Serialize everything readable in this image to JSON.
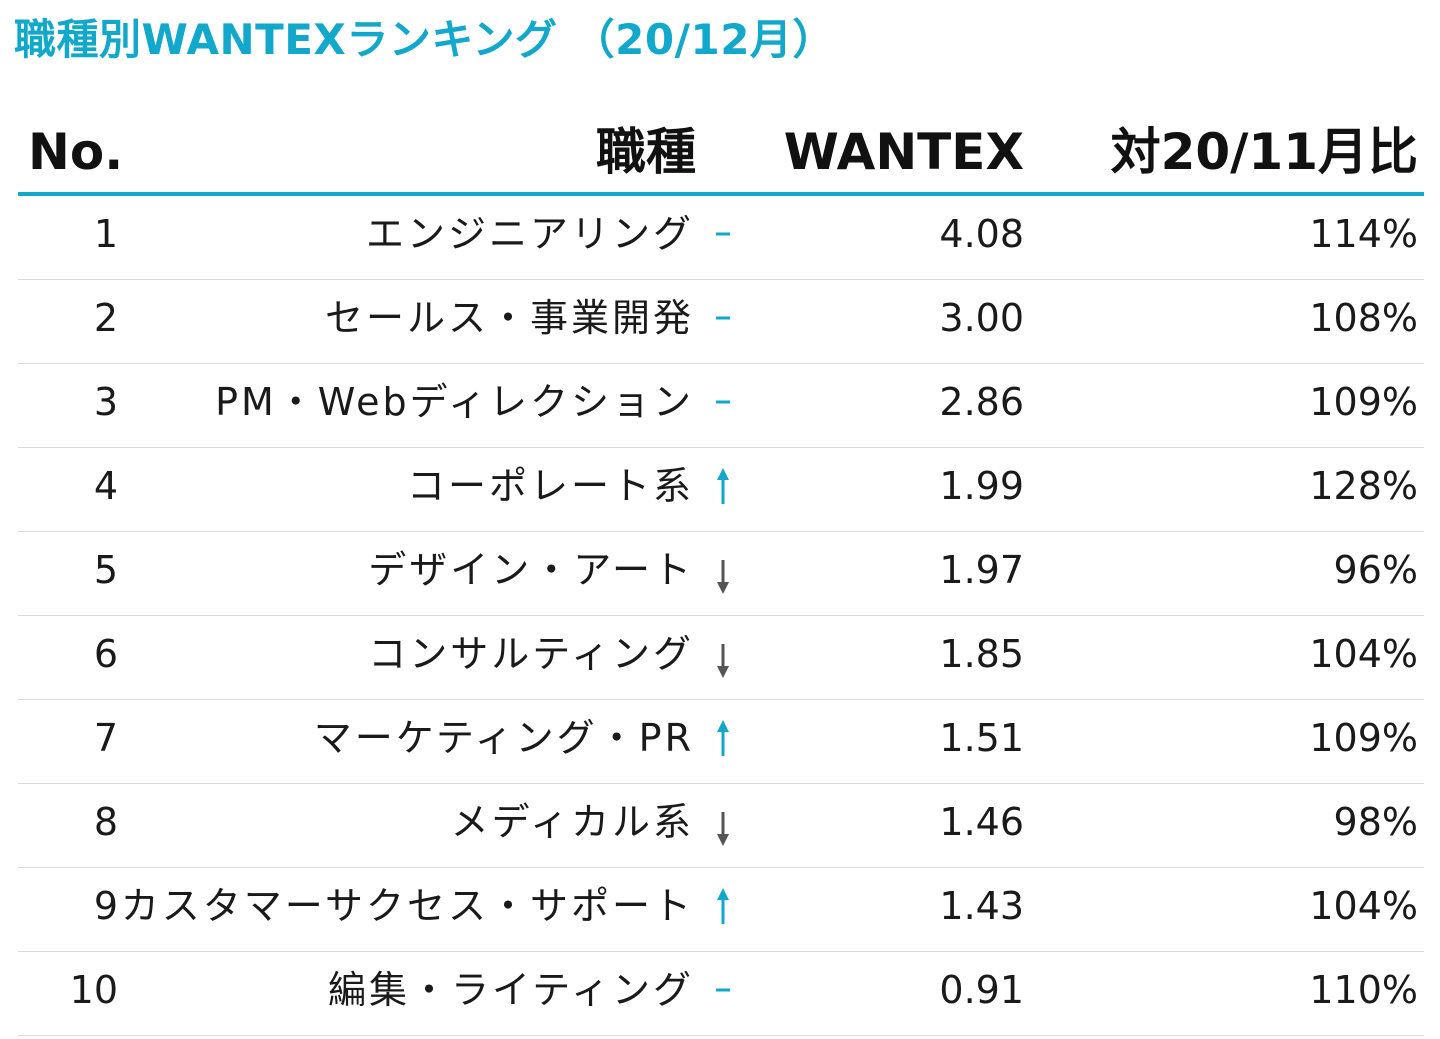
{
  "title": "職種別WANTEXランキング （20/12月）",
  "colors": {
    "accent": "#12a8cc",
    "down": "#555555",
    "divider": "#d9d9d9"
  },
  "header": {
    "no": "No.",
    "job": "職種",
    "wantex": "WANTEX",
    "ratio": "対20/11月比"
  },
  "rows": [
    {
      "no": "1",
      "job": "エンジニアリング",
      "trend": "flat-icon",
      "wantex": "4.08",
      "ratio": "114%"
    },
    {
      "no": "2",
      "job": "セールス・事業開発",
      "trend": "flat-icon",
      "wantex": "3.00",
      "ratio": "108%"
    },
    {
      "no": "3",
      "job": "PM・Webディレクション",
      "trend": "flat-icon",
      "wantex": "2.86",
      "ratio": "109%"
    },
    {
      "no": "4",
      "job": "コーポレート系",
      "trend": "up-arrow-icon",
      "wantex": "1.99",
      "ratio": "128%"
    },
    {
      "no": "5",
      "job": "デザイン・アート",
      "trend": "down-arrow-icon",
      "wantex": "1.97",
      "ratio": "96%"
    },
    {
      "no": "6",
      "job": "コンサルティング",
      "trend": "down-arrow-icon",
      "wantex": "1.85",
      "ratio": "104%"
    },
    {
      "no": "7",
      "job": "マーケティング・PR",
      "trend": "up-arrow-icon",
      "wantex": "1.51",
      "ratio": "109%"
    },
    {
      "no": "8",
      "job": "メディカル系",
      "trend": "down-arrow-icon",
      "wantex": "1.46",
      "ratio": "98%"
    },
    {
      "no": "9",
      "job": "カスタマーサクセス・サポート",
      "trend": "up-arrow-icon",
      "wantex": "1.43",
      "ratio": "104%"
    },
    {
      "no": "10",
      "job": "編集・ライティング",
      "trend": "flat-icon",
      "wantex": "0.91",
      "ratio": "110%"
    }
  ]
}
